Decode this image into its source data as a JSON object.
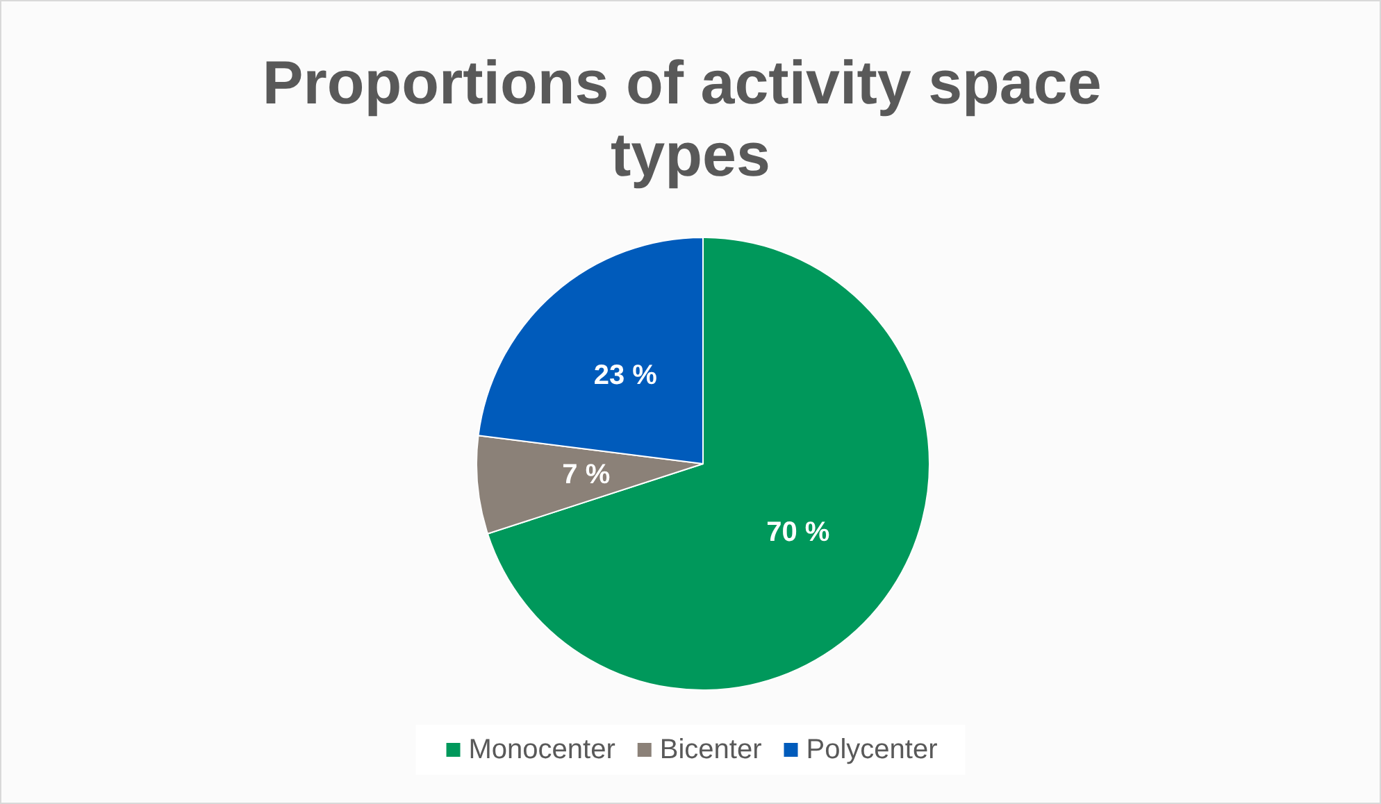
{
  "chart_data": {
    "type": "pie",
    "title": "Proportions of activity space types",
    "categories": [
      "Monocenter",
      "Bicenter",
      "Polycenter"
    ],
    "values": [
      70,
      7,
      23
    ],
    "colors": [
      "#00985b",
      "#8b8178",
      "#005bbb"
    ],
    "value_labels": [
      "70 %",
      "7 %",
      "23 %"
    ],
    "legend": "bottom"
  }
}
